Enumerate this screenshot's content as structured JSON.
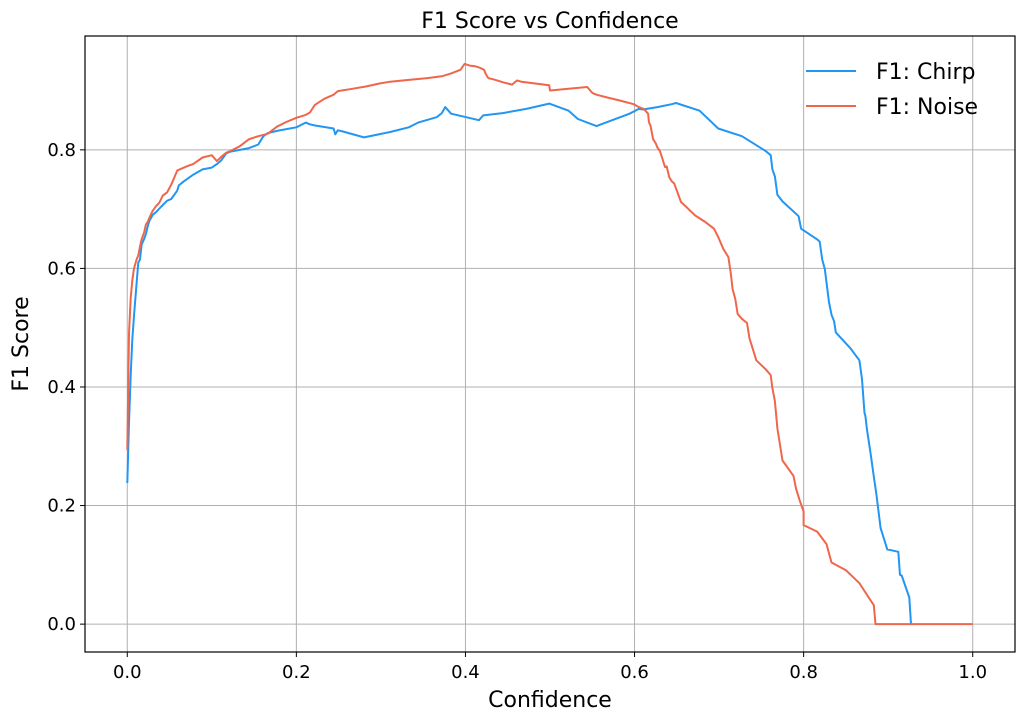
{
  "chart_data": {
    "type": "line",
    "title": "F1 Score vs Confidence",
    "xlabel": "Confidence",
    "ylabel": "F1 Score",
    "xlim": [
      -0.05,
      1.05
    ],
    "ylim": [
      -0.047,
      0.992
    ],
    "xticks": [
      0.0,
      0.2,
      0.4,
      0.6,
      0.8,
      1.0
    ],
    "xtick_labels": [
      "0.0",
      "0.2",
      "0.4",
      "0.6",
      "0.8",
      "1.0"
    ],
    "yticks": [
      0.0,
      0.2,
      0.4,
      0.6,
      0.8
    ],
    "ytick_labels": [
      "0.0",
      "0.2",
      "0.4",
      "0.6",
      "0.8"
    ],
    "grid": true,
    "legend_position": "top-right",
    "series": [
      {
        "name": "F1: Chirp",
        "color": "#2196f3",
        "x": [
          0.0,
          0.002,
          0.004,
          0.006,
          0.008,
          0.011,
          0.013,
          0.015,
          0.017,
          0.02,
          0.022,
          0.024,
          0.026,
          0.03,
          0.034,
          0.038,
          0.042,
          0.047,
          0.052,
          0.059,
          0.061,
          0.067,
          0.072,
          0.078,
          0.089,
          0.1,
          0.106,
          0.111,
          0.117,
          0.122,
          0.144,
          0.155,
          0.161,
          0.166,
          0.177,
          0.2,
          0.211,
          0.216,
          0.222,
          0.244,
          0.246,
          0.249,
          0.255,
          0.28,
          0.311,
          0.333,
          0.344,
          0.366,
          0.372,
          0.376,
          0.383,
          0.416,
          0.421,
          0.444,
          0.472,
          0.499,
          0.522,
          0.533,
          0.555,
          0.566,
          0.583,
          0.594,
          0.605,
          0.61,
          0.627,
          0.644,
          0.649,
          0.677,
          0.699,
          0.727,
          0.755,
          0.761,
          0.763,
          0.766,
          0.769,
          0.775,
          0.794,
          0.797,
          0.816,
          0.819,
          0.822,
          0.825,
          0.83,
          0.833,
          0.836,
          0.838,
          0.855,
          0.866,
          0.869,
          0.872,
          0.873,
          0.875,
          0.879,
          0.883,
          0.886,
          0.888,
          0.891,
          0.899,
          0.912,
          0.914,
          0.916,
          0.925,
          0.927
        ],
        "values": [
          0.238,
          0.34,
          0.42,
          0.48,
          0.52,
          0.575,
          0.61,
          0.615,
          0.64,
          0.65,
          0.658,
          0.67,
          0.68,
          0.69,
          0.695,
          0.701,
          0.707,
          0.714,
          0.717,
          0.731,
          0.74,
          0.747,
          0.752,
          0.758,
          0.767,
          0.77,
          0.776,
          0.782,
          0.794,
          0.797,
          0.803,
          0.809,
          0.823,
          0.828,
          0.832,
          0.838,
          0.846,
          0.843,
          0.841,
          0.836,
          0.826,
          0.833,
          0.831,
          0.821,
          0.83,
          0.838,
          0.846,
          0.855,
          0.862,
          0.872,
          0.861,
          0.85,
          0.858,
          0.862,
          0.869,
          0.878,
          0.866,
          0.852,
          0.84,
          0.846,
          0.855,
          0.861,
          0.869,
          0.868,
          0.872,
          0.877,
          0.879,
          0.866,
          0.836,
          0.823,
          0.798,
          0.791,
          0.767,
          0.755,
          0.724,
          0.713,
          0.688,
          0.667,
          0.649,
          0.645,
          0.615,
          0.599,
          0.543,
          0.522,
          0.511,
          0.492,
          0.466,
          0.445,
          0.413,
          0.356,
          0.351,
          0.328,
          0.29,
          0.249,
          0.22,
          0.197,
          0.162,
          0.126,
          0.122,
          0.083,
          0.082,
          0.045,
          0.0
        ]
      },
      {
        "name": "F1: Noise",
        "color": "#f0664a",
        "x": [
          0.0,
          0.002,
          0.004,
          0.006,
          0.008,
          0.011,
          0.013,
          0.015,
          0.017,
          0.02,
          0.022,
          0.024,
          0.026,
          0.03,
          0.034,
          0.038,
          0.042,
          0.047,
          0.052,
          0.059,
          0.067,
          0.072,
          0.078,
          0.089,
          0.1,
          0.106,
          0.111,
          0.117,
          0.122,
          0.133,
          0.144,
          0.155,
          0.166,
          0.177,
          0.188,
          0.2,
          0.211,
          0.216,
          0.222,
          0.233,
          0.244,
          0.249,
          0.266,
          0.283,
          0.299,
          0.311,
          0.333,
          0.355,
          0.372,
          0.383,
          0.394,
          0.399,
          0.405,
          0.411,
          0.416,
          0.422,
          0.424,
          0.427,
          0.433,
          0.444,
          0.455,
          0.461,
          0.466,
          0.499,
          0.5,
          0.544,
          0.55,
          0.555,
          0.566,
          0.583,
          0.599,
          0.605,
          0.611,
          0.616,
          0.617,
          0.619,
          0.622,
          0.625,
          0.627,
          0.63,
          0.633,
          0.636,
          0.638,
          0.641,
          0.644,
          0.647,
          0.649,
          0.655,
          0.661,
          0.666,
          0.672,
          0.683,
          0.694,
          0.699,
          0.705,
          0.711,
          0.714,
          0.716,
          0.719,
          0.722,
          0.727,
          0.733,
          0.736,
          0.739,
          0.744,
          0.755,
          0.761,
          0.763,
          0.766,
          0.769,
          0.775,
          0.788,
          0.791,
          0.795,
          0.8,
          0.8,
          0.816,
          0.827,
          0.833,
          0.85,
          0.866,
          0.877,
          0.883,
          0.885,
          0.886,
          1.0
        ],
        "values": [
          0.294,
          0.49,
          0.55,
          0.58,
          0.6,
          0.615,
          0.622,
          0.637,
          0.649,
          0.661,
          0.674,
          0.678,
          0.685,
          0.697,
          0.705,
          0.711,
          0.723,
          0.728,
          0.741,
          0.765,
          0.77,
          0.773,
          0.776,
          0.787,
          0.791,
          0.781,
          0.788,
          0.795,
          0.798,
          0.806,
          0.818,
          0.823,
          0.827,
          0.839,
          0.847,
          0.854,
          0.859,
          0.863,
          0.876,
          0.886,
          0.893,
          0.899,
          0.903,
          0.907,
          0.912,
          0.915,
          0.918,
          0.921,
          0.924,
          0.929,
          0.935,
          0.945,
          0.942,
          0.941,
          0.939,
          0.935,
          0.928,
          0.921,
          0.919,
          0.914,
          0.91,
          0.917,
          0.915,
          0.909,
          0.9,
          0.906,
          0.896,
          0.893,
          0.889,
          0.883,
          0.877,
          0.872,
          0.869,
          0.861,
          0.847,
          0.84,
          0.818,
          0.811,
          0.804,
          0.798,
          0.785,
          0.771,
          0.772,
          0.754,
          0.747,
          0.743,
          0.735,
          0.712,
          0.704,
          0.697,
          0.689,
          0.679,
          0.667,
          0.653,
          0.633,
          0.619,
          0.59,
          0.565,
          0.549,
          0.523,
          0.515,
          0.508,
          0.482,
          0.468,
          0.445,
          0.43,
          0.42,
          0.398,
          0.376,
          0.33,
          0.276,
          0.25,
          0.229,
          0.21,
          0.19,
          0.167,
          0.156,
          0.135,
          0.104,
          0.091,
          0.069,
          0.045,
          0.032,
          0.0,
          0.0,
          0.0
        ]
      }
    ]
  }
}
